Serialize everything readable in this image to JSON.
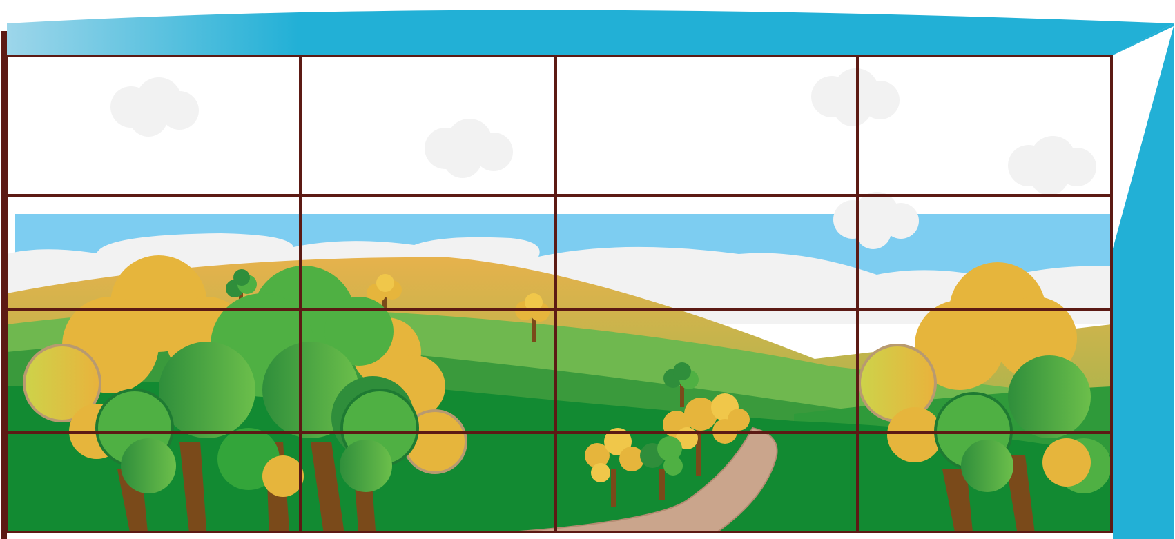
{
  "scene": {
    "subject": "window-wall-landscape",
    "colors": {
      "roof": "#22b0d6",
      "roof_fade": "#9dd6ea",
      "frame": "#5c1a14",
      "sky": "#7dcdf1",
      "cloud": "#f2f2f2",
      "grass_light": "#6fb84f",
      "grass_mid": "#3a9a3c",
      "grass_dark": "#128a32",
      "hill_gold": "#d9b24a",
      "tree_gold": "#e6b53c",
      "tree_green": "#4fb043",
      "tree_dark": "#2e8f3a",
      "trunk": "#7a4a1a",
      "path": "#caa58c"
    },
    "window_grid": {
      "columns": 4,
      "rows": 4
    }
  }
}
